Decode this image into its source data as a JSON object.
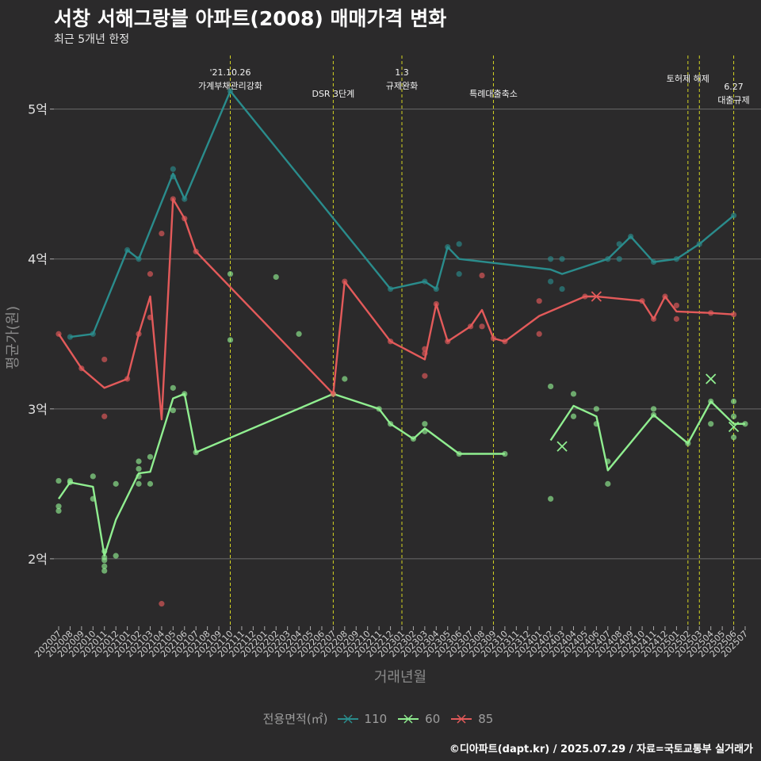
{
  "title": "서창 서해그랑블 아파트(2008) 매매가격 변화",
  "subtitle": "최근 5개년 한정",
  "caption": "©디아파트(dapt.kr) / 2025.07.29 / 자료=국토교통부 실거래가",
  "chart_data": {
    "type": "line",
    "xlabel": "거래년월",
    "ylabel": "평균가(원)",
    "ylim": [
      1.55,
      5.4
    ],
    "y_ticks": [
      {
        "value": 2,
        "label": "2억"
      },
      {
        "value": 3,
        "label": "3억"
      },
      {
        "value": 4,
        "label": "4억"
      },
      {
        "value": 5,
        "label": "5억"
      }
    ],
    "categories": [
      "202007",
      "202008",
      "202009",
      "202010",
      "202011",
      "202012",
      "202101",
      "202102",
      "202103",
      "202104",
      "202105",
      "202106",
      "202107",
      "202108",
      "202109",
      "202110",
      "202111",
      "202112",
      "202201",
      "202202",
      "202203",
      "202204",
      "202205",
      "202206",
      "202207",
      "202208",
      "202209",
      "202210",
      "202211",
      "202212",
      "202301",
      "202302",
      "202303",
      "202304",
      "202305",
      "202306",
      "202307",
      "202308",
      "202309",
      "202310",
      "202311",
      "202312",
      "202401",
      "202402",
      "202403",
      "202404",
      "202405",
      "202406",
      "202407",
      "202408",
      "202409",
      "202410",
      "202411",
      "202412",
      "202501",
      "202502",
      "202503",
      "202504",
      "202505",
      "202506",
      "202507"
    ],
    "grid": true,
    "legend": {
      "title": "전용면적(㎡)",
      "position": "bottom"
    },
    "events": [
      {
        "x": "202110",
        "label": "'21.10.26\n가계부채관리강화"
      },
      {
        "x": "202207",
        "label": "DSR 3단계"
      },
      {
        "x": "202301",
        "label": "1.3\n규제완화"
      },
      {
        "x": "202309",
        "label": "특례대출축소"
      },
      {
        "x": "202502",
        "label": "토허제 해제"
      },
      {
        "x": "202503",
        "label": ""
      },
      {
        "x": "202506",
        "label": "6.27\n대출규제"
      }
    ],
    "series": [
      {
        "name": "110",
        "color": "#2a8c8c",
        "line": [
          [
            "202008",
            3.48
          ],
          [
            "202010",
            3.5
          ],
          [
            "202101",
            4.06
          ],
          [
            "202102",
            4.0
          ],
          [
            "202105",
            4.57
          ],
          [
            "202106",
            4.4
          ],
          [
            "202110",
            5.12
          ],
          [
            "202212",
            3.8
          ],
          [
            "202303",
            3.85
          ],
          [
            "202304",
            3.8
          ],
          [
            "202305",
            4.08
          ],
          [
            "202306",
            4.0
          ],
          [
            "202402",
            3.93
          ],
          [
            "202403",
            3.9
          ],
          [
            "202407",
            4.0
          ],
          [
            "202409",
            4.15
          ],
          [
            "202411",
            3.98
          ],
          [
            "202501",
            4.0
          ],
          [
            "202503",
            4.1
          ],
          [
            "202506",
            4.29
          ]
        ],
        "points": [
          [
            "202008",
            3.48
          ],
          [
            "202010",
            3.5
          ],
          [
            "202101",
            4.06
          ],
          [
            "202102",
            4.0
          ],
          [
            "202105",
            4.6
          ],
          [
            "202105",
            4.55
          ],
          [
            "202106",
            4.4
          ],
          [
            "202110",
            5.12
          ],
          [
            "202212",
            3.8
          ],
          [
            "202303",
            3.85
          ],
          [
            "202304",
            3.8
          ],
          [
            "202305",
            4.08
          ],
          [
            "202306",
            4.1
          ],
          [
            "202306",
            3.9
          ],
          [
            "202402",
            4.0
          ],
          [
            "202402",
            3.85
          ],
          [
            "202403",
            4.0
          ],
          [
            "202403",
            3.8
          ],
          [
            "202407",
            4.0
          ],
          [
            "202408",
            4.1
          ],
          [
            "202408",
            4.0
          ],
          [
            "202409",
            4.15
          ],
          [
            "202411",
            3.98
          ],
          [
            "202501",
            4.0
          ],
          [
            "202503",
            4.1
          ],
          [
            "202506",
            4.29
          ]
        ],
        "cancelled": []
      },
      {
        "name": "60",
        "color": "#90ee90",
        "line": [
          [
            "202007",
            2.4
          ],
          [
            "202008",
            2.51
          ],
          [
            "202010",
            2.48
          ],
          [
            "202011",
            2.02
          ],
          [
            "202012",
            2.26
          ],
          [
            "202102",
            2.57
          ],
          [
            "202103",
            2.58
          ],
          [
            "202105",
            3.07
          ],
          [
            "202106",
            3.1
          ],
          [
            "202107",
            2.71
          ],
          [
            "202207",
            3.1
          ],
          [
            "202211",
            3.0
          ],
          [
            "202212",
            2.9
          ],
          [
            "202302",
            2.8
          ],
          [
            "202303",
            2.87
          ],
          [
            "202306",
            2.7
          ],
          [
            "202310",
            2.7
          ]
        ],
        "line2": [
          [
            "202402",
            2.79
          ],
          [
            "202404",
            3.02
          ],
          [
            "202406",
            2.95
          ],
          [
            "202407",
            2.59
          ],
          [
            "202411",
            2.96
          ],
          [
            "202502",
            2.77
          ],
          [
            "202504",
            3.05
          ],
          [
            "202506",
            2.9
          ],
          [
            "202507",
            2.9
          ]
        ],
        "points": [
          [
            "202007",
            2.52
          ],
          [
            "202007",
            2.35
          ],
          [
            "202007",
            2.32
          ],
          [
            "202008",
            2.51
          ],
          [
            "202008",
            2.52
          ],
          [
            "202010",
            2.55
          ],
          [
            "202010",
            2.4
          ],
          [
            "202011",
            2.05
          ],
          [
            "202011",
            2.01
          ],
          [
            "202011",
            1.99
          ],
          [
            "202011",
            1.95
          ],
          [
            "202011",
            1.92
          ],
          [
            "202012",
            2.5
          ],
          [
            "202012",
            2.02
          ],
          [
            "202102",
            2.65
          ],
          [
            "202102",
            2.6
          ],
          [
            "202102",
            2.55
          ],
          [
            "202102",
            2.5
          ],
          [
            "202103",
            2.68
          ],
          [
            "202103",
            2.5
          ],
          [
            "202105",
            3.14
          ],
          [
            "202105",
            2.99
          ],
          [
            "202106",
            3.1
          ],
          [
            "202107",
            2.71
          ],
          [
            "202110",
            3.9
          ],
          [
            "202110",
            3.46
          ],
          [
            "202202",
            3.88
          ],
          [
            "202204",
            3.5
          ],
          [
            "202207",
            3.1
          ],
          [
            "202208",
            3.2
          ],
          [
            "202211",
            3.0
          ],
          [
            "202212",
            2.9
          ],
          [
            "202302",
            2.8
          ],
          [
            "202303",
            2.9
          ],
          [
            "202303",
            2.85
          ],
          [
            "202306",
            2.7
          ],
          [
            "202310",
            2.7
          ],
          [
            "202402",
            3.15
          ],
          [
            "202402",
            2.4
          ],
          [
            "202404",
            3.1
          ],
          [
            "202404",
            2.95
          ],
          [
            "202406",
            3.0
          ],
          [
            "202406",
            2.9
          ],
          [
            "202407",
            2.65
          ],
          [
            "202407",
            2.5
          ],
          [
            "202411",
            3.0
          ],
          [
            "202411",
            2.96
          ],
          [
            "202502",
            2.77
          ],
          [
            "202504",
            3.05
          ],
          [
            "202504",
            2.9
          ],
          [
            "202506",
            3.05
          ],
          [
            "202506",
            2.95
          ],
          [
            "202506",
            2.81
          ],
          [
            "202507",
            2.9
          ]
        ],
        "cancelled": [
          [
            "202403",
            2.75
          ],
          [
            "202504",
            3.2
          ],
          [
            "202506",
            2.88
          ]
        ]
      },
      {
        "name": "85",
        "color": "#e35a5a",
        "line": [
          [
            "202007",
            3.5
          ],
          [
            "202009",
            3.27
          ],
          [
            "202011",
            3.14
          ],
          [
            "202101",
            3.2
          ],
          [
            "202102",
            3.5
          ],
          [
            "202103",
            3.75
          ],
          [
            "202104",
            2.93
          ],
          [
            "202105",
            4.4
          ],
          [
            "202106",
            4.27
          ],
          [
            "202107",
            4.05
          ],
          [
            "202207",
            3.1
          ],
          [
            "202208",
            3.85
          ],
          [
            "202212",
            3.45
          ],
          [
            "202303",
            3.33
          ],
          [
            "202304",
            3.7
          ],
          [
            "202305",
            3.45
          ],
          [
            "202307",
            3.55
          ],
          [
            "202308",
            3.66
          ],
          [
            "202309",
            3.47
          ],
          [
            "202310",
            3.45
          ],
          [
            "202401",
            3.62
          ],
          [
            "202405",
            3.75
          ],
          [
            "202406",
            3.75
          ],
          [
            "202410",
            3.72
          ],
          [
            "202411",
            3.6
          ],
          [
            "202412",
            3.75
          ],
          [
            "202501",
            3.65
          ],
          [
            "202504",
            3.64
          ],
          [
            "202506",
            3.63
          ]
        ],
        "points": [
          [
            "202007",
            3.5
          ],
          [
            "202009",
            3.27
          ],
          [
            "202011",
            3.33
          ],
          [
            "202011",
            2.95
          ],
          [
            "202101",
            3.2
          ],
          [
            "202102",
            3.5
          ],
          [
            "202103",
            3.9
          ],
          [
            "202103",
            3.61
          ],
          [
            "202104",
            4.17
          ],
          [
            "202104",
            1.7
          ],
          [
            "202105",
            4.4
          ],
          [
            "202106",
            4.27
          ],
          [
            "202107",
            4.05
          ],
          [
            "202207",
            3.1
          ],
          [
            "202208",
            3.85
          ],
          [
            "202212",
            3.45
          ],
          [
            "202303",
            3.4
          ],
          [
            "202303",
            3.37
          ],
          [
            "202303",
            3.22
          ],
          [
            "202304",
            3.7
          ],
          [
            "202305",
            3.45
          ],
          [
            "202307",
            3.55
          ],
          [
            "202308",
            3.89
          ],
          [
            "202308",
            3.55
          ],
          [
            "202309",
            3.47
          ],
          [
            "202310",
            3.45
          ],
          [
            "202401",
            3.72
          ],
          [
            "202401",
            3.5
          ],
          [
            "202405",
            3.75
          ],
          [
            "202410",
            3.72
          ],
          [
            "202411",
            3.6
          ],
          [
            "202412",
            3.75
          ],
          [
            "202501",
            3.69
          ],
          [
            "202501",
            3.6
          ],
          [
            "202504",
            3.64
          ],
          [
            "202506",
            3.63
          ]
        ],
        "cancelled": [
          [
            "202406",
            3.75
          ]
        ]
      }
    ]
  }
}
